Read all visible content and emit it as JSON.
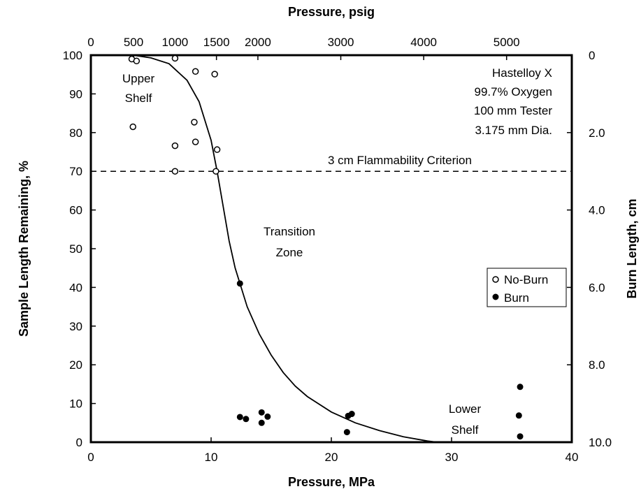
{
  "chart_data": {
    "type": "scatter",
    "title": "",
    "xlabel": "Pressure, MPa",
    "ylabel": "Sample Length Remaining, %",
    "x2label": "Pressure, psig",
    "y2label": "Burn Length, cm",
    "xlim": [
      0,
      40
    ],
    "ylim": [
      0,
      100
    ],
    "x_ticks": [
      0,
      10,
      20,
      30,
      40
    ],
    "y_ticks": [
      0,
      10,
      20,
      30,
      40,
      50,
      60,
      70,
      80,
      90,
      100
    ],
    "x2_ticks": [
      {
        "label": "0",
        "mpa": 0
      },
      {
        "label": "500",
        "mpa": 3.549
      },
      {
        "label": "1000",
        "mpa": 6.998
      },
      {
        "label": "1500",
        "mpa": 10.445
      },
      {
        "label": "2000",
        "mpa": 13.891
      },
      {
        "label": "3000",
        "mpa": 20.786
      },
      {
        "label": "4000",
        "mpa": 27.681
      },
      {
        "label": "5000",
        "mpa": 34.576
      }
    ],
    "y2_ticks": [
      {
        "label": "0",
        "pct": 100
      },
      {
        "label": "2.0",
        "pct": 80
      },
      {
        "label": "4.0",
        "pct": 60
      },
      {
        "label": "6.0",
        "pct": 40
      },
      {
        "label": "8.0",
        "pct": 20
      },
      {
        "label": "10.0",
        "pct": 0
      }
    ],
    "grid": false,
    "legend_position": "middle-right",
    "series": [
      {
        "name": "No-Burn",
        "marker": "open-circle",
        "points": [
          [
            3.4,
            99
          ],
          [
            3.8,
            98.5
          ],
          [
            7.0,
            99.2
          ],
          [
            8.7,
            95.8
          ],
          [
            10.3,
            95.1
          ],
          [
            3.5,
            81.5
          ],
          [
            8.6,
            82.7
          ],
          [
            8.7,
            77.6
          ],
          [
            7.0,
            76.6
          ],
          [
            10.5,
            75.6
          ],
          [
            7.0,
            70.0
          ],
          [
            10.4,
            70.0
          ]
        ]
      },
      {
        "name": "Burn",
        "marker": "filled-circle",
        "points": [
          [
            12.4,
            41
          ],
          [
            12.4,
            6.5
          ],
          [
            12.9,
            6.0
          ],
          [
            14.2,
            7.7
          ],
          [
            14.7,
            6.6
          ],
          [
            14.2,
            5.0
          ],
          [
            21.4,
            6.8
          ],
          [
            21.7,
            7.3
          ],
          [
            21.3,
            2.6
          ],
          [
            35.7,
            14.3
          ],
          [
            35.6,
            6.9
          ],
          [
            35.7,
            1.5
          ]
        ]
      },
      {
        "name": "",
        "type": "line",
        "points": [
          [
            3.5,
            100
          ],
          [
            5.0,
            99.3
          ],
          [
            6.5,
            97.8
          ],
          [
            8.0,
            93.5
          ],
          [
            9.0,
            88
          ],
          [
            10.0,
            78
          ],
          [
            10.5,
            70
          ],
          [
            11.0,
            61
          ],
          [
            11.5,
            52
          ],
          [
            12.0,
            45
          ],
          [
            13.0,
            35
          ],
          [
            14.0,
            28
          ],
          [
            15.0,
            22.5
          ],
          [
            16.0,
            18
          ],
          [
            17.0,
            14.5
          ],
          [
            18.0,
            11.8
          ],
          [
            20.0,
            7.8
          ],
          [
            22.0,
            5.0
          ],
          [
            24.0,
            3.0
          ],
          [
            26.0,
            1.4
          ],
          [
            28.0,
            0.3
          ],
          [
            28.8,
            0
          ]
        ]
      }
    ],
    "reference_line": {
      "y": 70,
      "style": "dashed",
      "label": "3 cm Flammability Criterion"
    },
    "annotations": {
      "upper_shelf": [
        "Upper",
        "Shelf"
      ],
      "transition": [
        "Transition",
        "Zone"
      ],
      "lower_shelf": [
        "Lower",
        "Shelf"
      ],
      "conditions": [
        "Hastelloy X",
        "99.7% Oxygen",
        "100 mm Tester",
        "3.175 mm Dia."
      ]
    },
    "legend": [
      {
        "label": "No-Burn",
        "marker": "open-circle"
      },
      {
        "label": "Burn",
        "marker": "filled-circle"
      }
    ]
  }
}
